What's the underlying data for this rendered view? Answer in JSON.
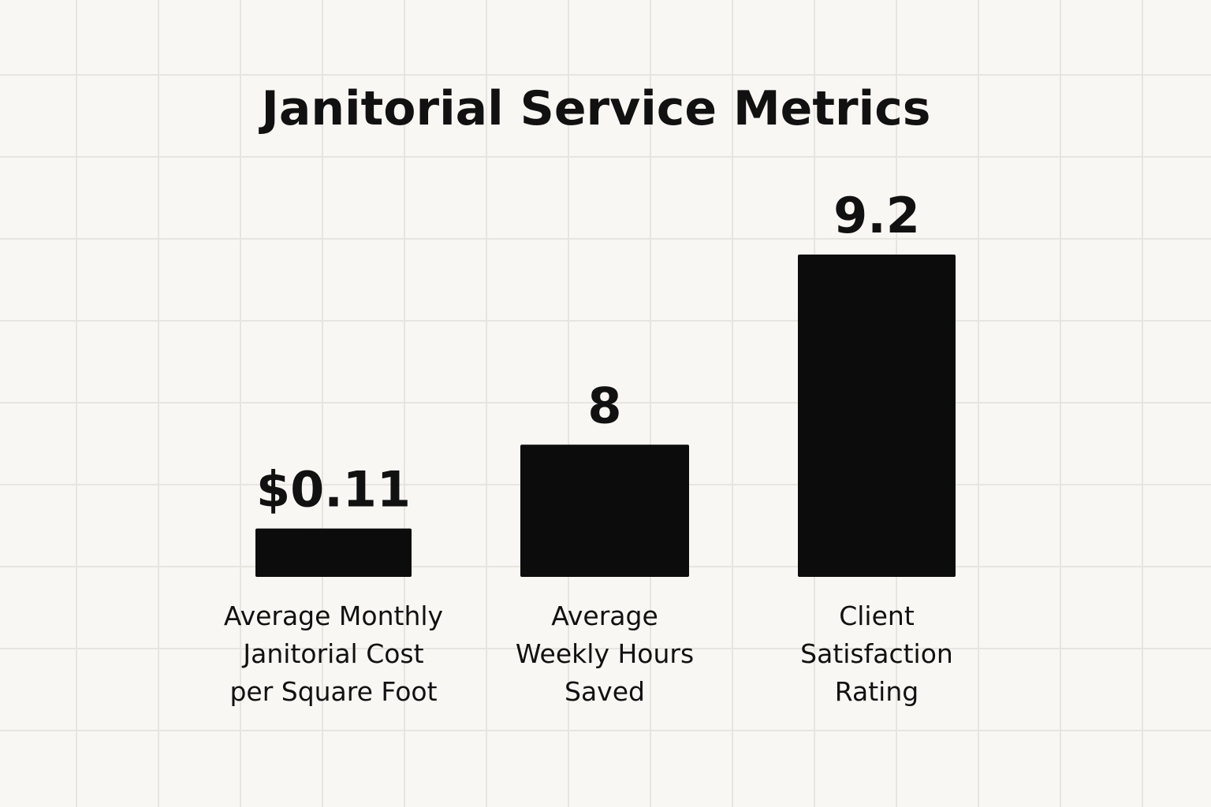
{
  "chart_data": {
    "type": "bar",
    "title": "Janitorial Service Metrics",
    "categories": [
      [
        "Average Monthly",
        "Janitorial Cost",
        "per Square Foot"
      ],
      [
        "Average",
        "Weekly Hours",
        "Saved"
      ],
      [
        "Client",
        "Satisfaction",
        "Rating"
      ]
    ],
    "values": [
      0.11,
      8,
      9.2
    ],
    "value_labels": [
      "$0.11",
      "8",
      "9.2"
    ],
    "bar_heights_relative": [
      0.15,
      0.41,
      1.0
    ],
    "grid": true,
    "legend": "none",
    "colors": {
      "bar": "#0c0c0c",
      "background": "#f8f7f3",
      "grid": "#e6e5e0",
      "text": "#111111"
    }
  }
}
